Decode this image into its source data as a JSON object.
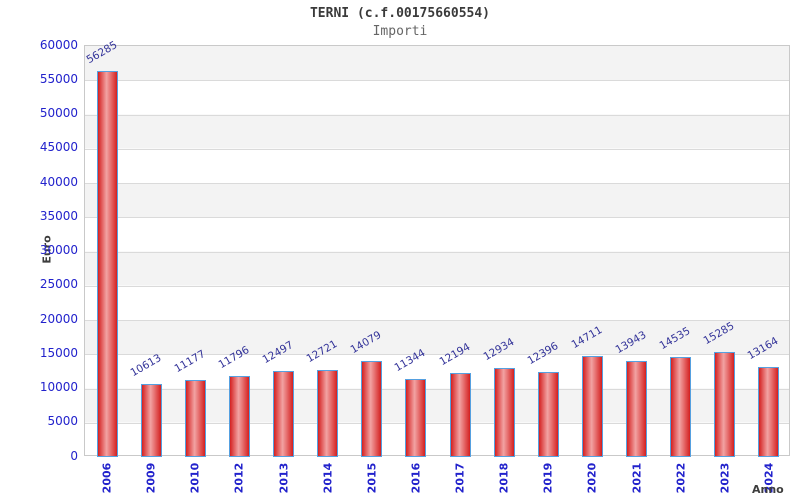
{
  "chart_data": {
    "type": "bar",
    "title": "TERNI (c.f.00175660554)",
    "subtitle": "Importi",
    "xlabel": "Anno",
    "ylabel": "Euro",
    "categories": [
      "2006",
      "2009",
      "2010",
      "2012",
      "2013",
      "2014",
      "2015",
      "2016",
      "2017",
      "2018",
      "2019",
      "2020",
      "2021",
      "2022",
      "2023",
      "2024"
    ],
    "values": [
      56285,
      10613,
      11177,
      11796,
      12497,
      12721,
      14079,
      11344,
      12194,
      12934,
      12396,
      14711,
      13943,
      14535,
      15285,
      13164
    ],
    "ylim": [
      0,
      60000
    ],
    "ytick_step": 5000,
    "yticks": [
      0,
      5000,
      10000,
      15000,
      20000,
      25000,
      30000,
      35000,
      40000,
      45000,
      50000,
      55000,
      60000
    ],
    "grid": true,
    "legend_position": "none",
    "colors": {
      "bar_fill_edge": "#d42020",
      "bar_fill_center": "#f2a3a3",
      "bar_border": "#55a0e0",
      "value_label": "#333399",
      "axis_tick_label": "#2222cc",
      "band_gray": "#f3f3f3",
      "band_white": "#ffffff",
      "gridline": "#dadada",
      "title_text": "#3a3a3a",
      "subtitle_text": "#666666",
      "axis_title_text": "#3d3d3d"
    }
  }
}
